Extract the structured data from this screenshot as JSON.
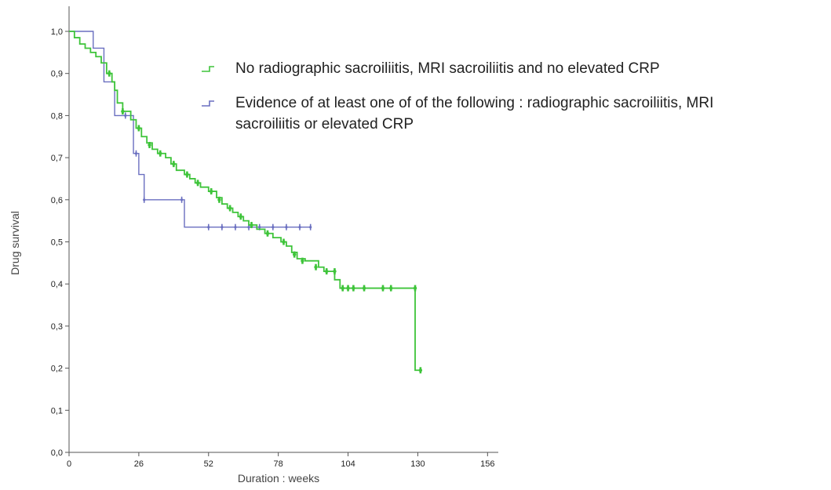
{
  "chart_data": {
    "type": "line",
    "title": "",
    "xlabel": "Duration : weeks",
    "ylabel": "Drug survival",
    "xlim": [
      0,
      160
    ],
    "ylim": [
      0,
      1.0
    ],
    "grid": false,
    "legend_position": "top-right",
    "x_ticks": [
      0,
      26,
      52,
      78,
      104,
      130,
      156
    ],
    "x_tick_labels": [
      "0",
      "26",
      "52",
      "78",
      "104",
      "130",
      "156"
    ],
    "y_ticks": [
      0,
      0.1,
      0.2,
      0.3,
      0.4,
      0.5,
      0.6,
      0.7,
      0.8,
      0.9,
      1.0
    ],
    "y_tick_labels": [
      "0,0",
      "0,1",
      "0,2",
      "0,3",
      "0,4",
      "0,5",
      "0,6",
      "0,7",
      "0,8",
      "0,9",
      "1,0"
    ],
    "series": [
      {
        "name": "No radiographic sacroiliitis, MRI sacroiliitis and no elevated CRP",
        "color": "#3ec43a",
        "steps": [
          [
            0,
            1.0
          ],
          [
            2,
            0.985
          ],
          [
            4,
            0.97
          ],
          [
            6,
            0.96
          ],
          [
            8,
            0.95
          ],
          [
            10,
            0.94
          ],
          [
            12,
            0.925
          ],
          [
            14,
            0.9
          ],
          [
            16,
            0.88
          ],
          [
            17,
            0.86
          ],
          [
            18,
            0.83
          ],
          [
            20,
            0.81
          ],
          [
            23,
            0.79
          ],
          [
            25,
            0.77
          ],
          [
            27,
            0.75
          ],
          [
            29,
            0.735
          ],
          [
            31,
            0.72
          ],
          [
            33,
            0.71
          ],
          [
            36,
            0.7
          ],
          [
            38,
            0.685
          ],
          [
            40,
            0.67
          ],
          [
            43,
            0.66
          ],
          [
            45,
            0.65
          ],
          [
            47,
            0.64
          ],
          [
            49,
            0.63
          ],
          [
            52,
            0.62
          ],
          [
            55,
            0.605
          ],
          [
            57,
            0.59
          ],
          [
            59,
            0.58
          ],
          [
            61,
            0.57
          ],
          [
            63,
            0.56
          ],
          [
            65,
            0.55
          ],
          [
            67,
            0.54
          ],
          [
            70,
            0.53
          ],
          [
            73,
            0.52
          ],
          [
            76,
            0.51
          ],
          [
            79,
            0.5
          ],
          [
            81,
            0.49
          ],
          [
            83,
            0.475
          ],
          [
            85,
            0.46
          ],
          [
            88,
            0.455
          ],
          [
            93,
            0.44
          ],
          [
            95,
            0.43
          ],
          [
            99,
            0.41
          ],
          [
            101,
            0.39
          ],
          [
            129,
            0.39
          ],
          [
            129,
            0.195
          ],
          [
            131,
            0.195
          ]
        ],
        "censored": [
          [
            15,
            0.9
          ],
          [
            20,
            0.81
          ],
          [
            26,
            0.77
          ],
          [
            30,
            0.73
          ],
          [
            34,
            0.71
          ],
          [
            39,
            0.685
          ],
          [
            44,
            0.66
          ],
          [
            48,
            0.64
          ],
          [
            53,
            0.62
          ],
          [
            56,
            0.6
          ],
          [
            60,
            0.58
          ],
          [
            64,
            0.56
          ],
          [
            68,
            0.54
          ],
          [
            74,
            0.52
          ],
          [
            80,
            0.5
          ],
          [
            84,
            0.47
          ],
          [
            87,
            0.455
          ],
          [
            92,
            0.44
          ],
          [
            96,
            0.43
          ],
          [
            99,
            0.43
          ],
          [
            102,
            0.39
          ],
          [
            104,
            0.39
          ],
          [
            106,
            0.39
          ],
          [
            110,
            0.39
          ],
          [
            117,
            0.39
          ],
          [
            120,
            0.39
          ],
          [
            129,
            0.39
          ],
          [
            131,
            0.195
          ]
        ]
      },
      {
        "name": "Evidence of at least one of of the following : radiographic sacroiliitis, MRI sacroiliitis or elevated CRP",
        "color": "#6a6fc0",
        "steps": [
          [
            0,
            1.0
          ],
          [
            9,
            1.0
          ],
          [
            9,
            0.96
          ],
          [
            13,
            0.96
          ],
          [
            13,
            0.88
          ],
          [
            17,
            0.88
          ],
          [
            17,
            0.8
          ],
          [
            24,
            0.8
          ],
          [
            24,
            0.71
          ],
          [
            26,
            0.71
          ],
          [
            26,
            0.66
          ],
          [
            28,
            0.66
          ],
          [
            28,
            0.6
          ],
          [
            43,
            0.6
          ],
          [
            43,
            0.535
          ],
          [
            90,
            0.535
          ]
        ],
        "censored": [
          [
            21,
            0.8
          ],
          [
            25,
            0.71
          ],
          [
            28,
            0.6
          ],
          [
            42,
            0.6
          ],
          [
            52,
            0.535
          ],
          [
            57,
            0.535
          ],
          [
            62,
            0.535
          ],
          [
            67,
            0.535
          ],
          [
            71,
            0.535
          ],
          [
            76,
            0.535
          ],
          [
            81,
            0.535
          ],
          [
            86,
            0.535
          ],
          [
            90,
            0.535
          ]
        ]
      }
    ]
  }
}
